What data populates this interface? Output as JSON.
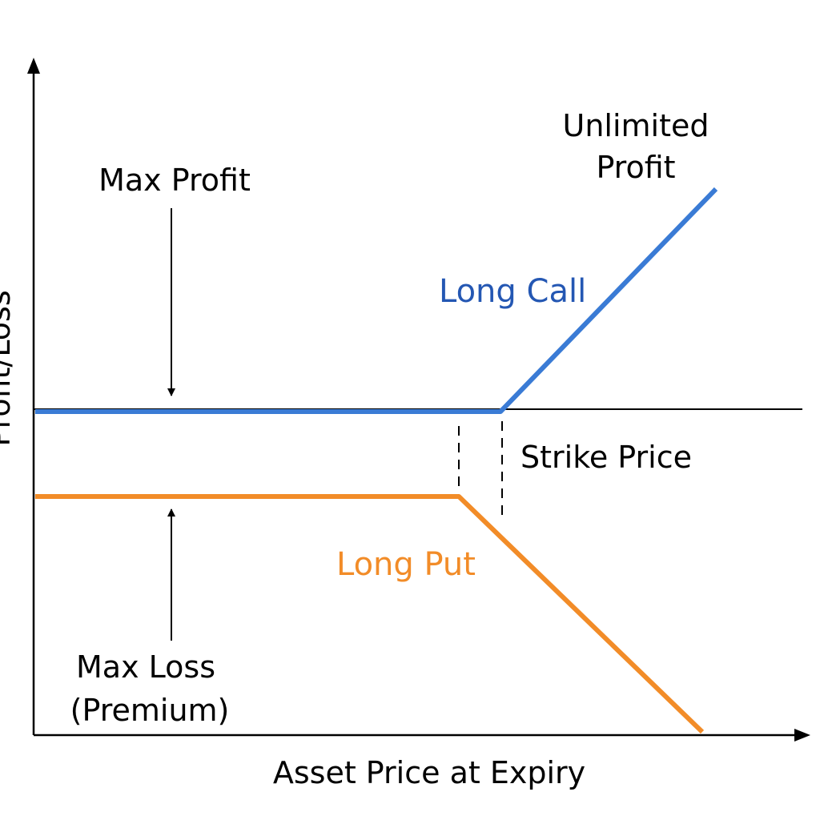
{
  "diagram": {
    "y_axis_label": "Profit/Loss",
    "x_axis_label": "Asset Price at Expiry",
    "annotations": {
      "max_profit": "Max Profit",
      "max_loss_line1": "Max Loss",
      "max_loss_line2": "(Premium)",
      "unlimited_line1": "Unlimited",
      "unlimited_line2": "Profit",
      "strike_price": "Strike Price"
    },
    "series": [
      {
        "name": "Long Call",
        "color": "#3a7bd5"
      },
      {
        "name": "Long Put",
        "color": "#f28c28"
      }
    ],
    "colors": {
      "call_label": "#2457b3",
      "put_label": "#f28c28",
      "axis": "#000000"
    }
  }
}
